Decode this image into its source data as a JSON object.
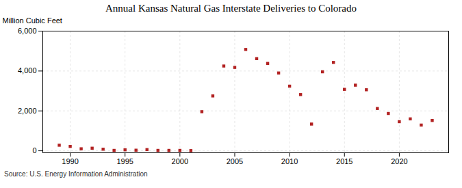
{
  "chart_data": {
    "type": "scatter",
    "title": "Annual Kansas Natural Gas Interstate Deliveries to Colorado",
    "ylabel": "Million Cubic Feet",
    "annotations": [
      "Source: U.S. Energy Information Administration"
    ],
    "color": "#b22222",
    "marker": "square",
    "grid": true,
    "xlim": [
      1987.5,
      2024.5
    ],
    "xticks": [
      1990,
      1995,
      2000,
      2005,
      2010,
      2015,
      2020
    ],
    "ylim": [
      -100,
      6000
    ],
    "yticks": [
      0,
      {
        "value": 2000,
        "label": "2,000"
      },
      {
        "value": 4000,
        "label": "4,000"
      },
      {
        "value": 6000,
        "label": "6,000"
      }
    ],
    "x": [
      1989,
      1990,
      1991,
      1992,
      1993,
      1994,
      1995,
      1996,
      1997,
      1998,
      1999,
      2000,
      2001,
      2002,
      2003,
      2004,
      2005,
      2006,
      2007,
      2008,
      2009,
      2010,
      2011,
      2012,
      2013,
      2014,
      2015,
      2016,
      2017,
      2018,
      2019,
      2020,
      2021,
      2022,
      2023
    ],
    "values": [
      280,
      220,
      100,
      130,
      80,
      20,
      50,
      30,
      60,
      20,
      20,
      20,
      10,
      1960,
      2750,
      4250,
      4180,
      5080,
      4620,
      4380,
      3900,
      3240,
      2820,
      1340,
      3960,
      4430,
      3080,
      3290,
      3060,
      2120,
      1870,
      1460,
      1600,
      1290,
      1520
    ]
  }
}
